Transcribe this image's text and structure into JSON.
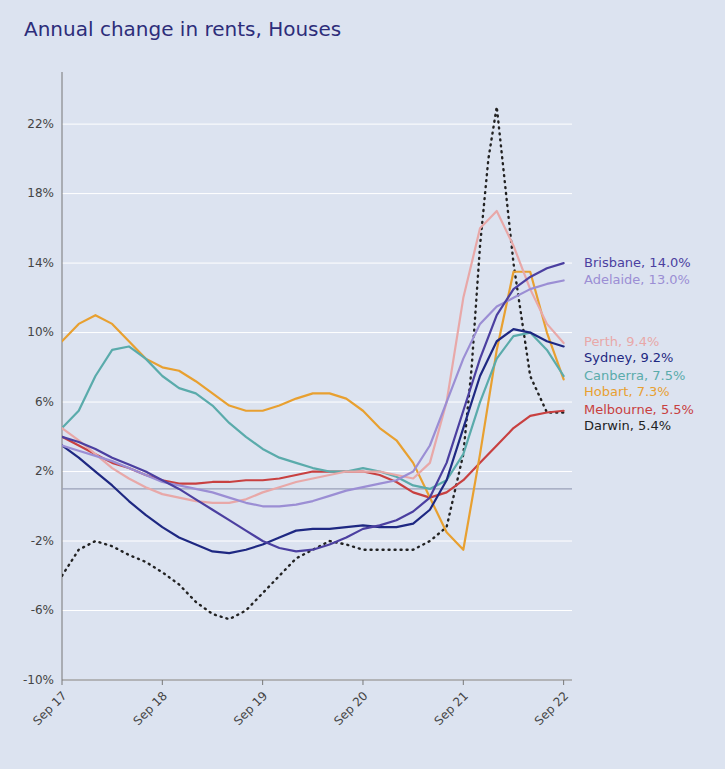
{
  "chart_data": {
    "type": "line",
    "title": "Annual change in rents, Houses",
    "title_color": "#2d2d7a",
    "background_color": "#dce3f0",
    "grid": true,
    "xlim": [
      0,
      61
    ],
    "xticks": [
      {
        "value": 0,
        "label": "Sep 17"
      },
      {
        "value": 12,
        "label": "Sep 18"
      },
      {
        "value": 24,
        "label": "Sep 19"
      },
      {
        "value": 36,
        "label": "Sep 20"
      },
      {
        "value": 48,
        "label": "Sep 21"
      },
      {
        "value": 60,
        "label": "Sep 22"
      }
    ],
    "ylim": [
      -10,
      25
    ],
    "yticks": [
      {
        "value": -10,
        "label": "-10%"
      },
      {
        "value": -6,
        "label": "-6%"
      },
      {
        "value": -2,
        "label": "-2%"
      },
      {
        "value": 2,
        "label": "2%"
      },
      {
        "value": 6,
        "label": "6%"
      },
      {
        "value": 10,
        "label": "10%"
      },
      {
        "value": 14,
        "label": "14%"
      },
      {
        "value": 18,
        "label": "18%"
      },
      {
        "value": 22,
        "label": "22%"
      }
    ],
    "reference_line_y": 1.0,
    "series": [
      {
        "name": "Brisbane, 14.0%",
        "color": "#4b3fa0",
        "line_style": "solid",
        "x": [
          0,
          2,
          4,
          6,
          8,
          10,
          12,
          14,
          16,
          18,
          20,
          22,
          24,
          26,
          28,
          30,
          32,
          34,
          36,
          38,
          40,
          42,
          44,
          46,
          48,
          50,
          52,
          54,
          56,
          58,
          60
        ],
        "values": [
          4.0,
          3.7,
          3.3,
          2.8,
          2.4,
          2.0,
          1.5,
          1.0,
          0.4,
          -0.2,
          -0.8,
          -1.4,
          -2.0,
          -2.4,
          -2.6,
          -2.5,
          -2.2,
          -1.8,
          -1.3,
          -1.1,
          -0.8,
          -0.3,
          0.5,
          2.5,
          5.5,
          8.5,
          11.0,
          12.5,
          13.2,
          13.7,
          14.0
        ]
      },
      {
        "name": "Adelaide, 13.0%",
        "color": "#9b8ed4",
        "line_style": "solid",
        "x": [
          0,
          2,
          4,
          6,
          8,
          10,
          12,
          14,
          16,
          18,
          20,
          22,
          24,
          26,
          28,
          30,
          32,
          34,
          36,
          38,
          40,
          42,
          44,
          46,
          48,
          50,
          52,
          54,
          56,
          58,
          60
        ],
        "values": [
          3.5,
          3.2,
          2.9,
          2.6,
          2.2,
          1.8,
          1.4,
          1.2,
          1.0,
          0.8,
          0.5,
          0.2,
          0.0,
          0.0,
          0.1,
          0.3,
          0.6,
          0.9,
          1.1,
          1.3,
          1.5,
          2.0,
          3.5,
          6.0,
          8.5,
          10.5,
          11.5,
          12.0,
          12.5,
          12.8,
          13.0
        ]
      },
      {
        "name": "Perth, 9.4%",
        "color": "#e8a8a8",
        "line_style": "solid",
        "x": [
          0,
          2,
          4,
          6,
          8,
          10,
          12,
          14,
          16,
          18,
          20,
          22,
          24,
          26,
          28,
          30,
          32,
          34,
          36,
          38,
          40,
          42,
          44,
          46,
          48,
          50,
          52,
          54,
          56,
          58,
          60
        ],
        "values": [
          4.5,
          3.8,
          3.0,
          2.2,
          1.6,
          1.1,
          0.7,
          0.5,
          0.3,
          0.2,
          0.2,
          0.4,
          0.8,
          1.1,
          1.4,
          1.6,
          1.8,
          2.0,
          2.0,
          2.0,
          1.8,
          1.6,
          2.5,
          6.0,
          12.0,
          16.0,
          17.0,
          15.0,
          12.5,
          10.5,
          9.4
        ]
      },
      {
        "name": "Sydney, 9.2%",
        "color": "#1e2882",
        "line_style": "solid",
        "x": [
          0,
          2,
          4,
          6,
          8,
          10,
          12,
          14,
          16,
          18,
          20,
          22,
          24,
          26,
          28,
          30,
          32,
          34,
          36,
          38,
          40,
          42,
          44,
          46,
          48,
          50,
          52,
          54,
          56,
          58,
          60
        ],
        "values": [
          3.5,
          2.8,
          2.0,
          1.2,
          0.3,
          -0.5,
          -1.2,
          -1.8,
          -2.2,
          -2.6,
          -2.7,
          -2.5,
          -2.2,
          -1.8,
          -1.4,
          -1.3,
          -1.3,
          -1.2,
          -1.1,
          -1.2,
          -1.2,
          -1.0,
          -0.2,
          1.5,
          4.5,
          7.5,
          9.5,
          10.2,
          10.0,
          9.5,
          9.2
        ]
      },
      {
        "name": "Canberra, 7.5%",
        "color": "#5aabab",
        "line_style": "solid",
        "x": [
          0,
          2,
          4,
          6,
          8,
          10,
          12,
          14,
          16,
          18,
          20,
          22,
          24,
          26,
          28,
          30,
          32,
          34,
          36,
          38,
          40,
          42,
          44,
          46,
          48,
          50,
          52,
          54,
          56,
          58,
          60
        ],
        "values": [
          4.5,
          5.5,
          7.5,
          9.0,
          9.2,
          8.5,
          7.5,
          6.8,
          6.5,
          5.8,
          4.8,
          4.0,
          3.3,
          2.8,
          2.5,
          2.2,
          2.0,
          2.0,
          2.2,
          2.0,
          1.7,
          1.2,
          1.0,
          1.5,
          3.0,
          6.0,
          8.5,
          9.8,
          10.0,
          9.0,
          7.5
        ]
      },
      {
        "name": "Hobart, 7.3%",
        "color": "#e8a030",
        "line_style": "solid",
        "x": [
          0,
          2,
          4,
          6,
          8,
          10,
          12,
          14,
          16,
          18,
          20,
          22,
          24,
          26,
          28,
          30,
          32,
          34,
          36,
          38,
          40,
          42,
          44,
          46,
          48,
          50,
          52,
          54,
          56,
          58,
          60
        ],
        "values": [
          9.5,
          10.5,
          11.0,
          10.5,
          9.5,
          8.5,
          8.0,
          7.8,
          7.2,
          6.5,
          5.8,
          5.5,
          5.5,
          5.8,
          6.2,
          6.5,
          6.5,
          6.2,
          5.5,
          4.5,
          3.8,
          2.5,
          0.5,
          -1.5,
          -2.5,
          3.0,
          9.0,
          13.5,
          13.5,
          10.0,
          7.3
        ]
      },
      {
        "name": "Melbourne, 5.5%",
        "color": "#c84040",
        "line_style": "solid",
        "x": [
          0,
          2,
          4,
          6,
          8,
          10,
          12,
          14,
          16,
          18,
          20,
          22,
          24,
          26,
          28,
          30,
          32,
          34,
          36,
          38,
          40,
          42,
          44,
          46,
          48,
          50,
          52,
          54,
          56,
          58,
          60
        ],
        "values": [
          4.0,
          3.5,
          3.0,
          2.5,
          2.2,
          1.8,
          1.5,
          1.3,
          1.3,
          1.4,
          1.4,
          1.5,
          1.5,
          1.6,
          1.8,
          2.0,
          2.0,
          2.0,
          2.0,
          1.8,
          1.4,
          0.8,
          0.5,
          0.8,
          1.5,
          2.5,
          3.5,
          4.5,
          5.2,
          5.4,
          5.5
        ]
      },
      {
        "name": "Darwin, 5.4%",
        "color": "#222222",
        "line_style": "dotted",
        "x": [
          0,
          2,
          4,
          6,
          8,
          10,
          12,
          14,
          16,
          18,
          20,
          22,
          24,
          26,
          28,
          30,
          32,
          34,
          36,
          38,
          40,
          42,
          44,
          46,
          48,
          49,
          50,
          51,
          52,
          54,
          56,
          58,
          60
        ],
        "values": [
          -4.0,
          -2.5,
          -2.0,
          -2.3,
          -2.8,
          -3.2,
          -3.8,
          -4.5,
          -5.5,
          -6.2,
          -6.5,
          -6.0,
          -5.0,
          -4.0,
          -3.0,
          -2.5,
          -2.0,
          -2.2,
          -2.5,
          -2.5,
          -2.5,
          -2.5,
          -2.0,
          -1.2,
          3.0,
          8.0,
          15.0,
          20.0,
          23.0,
          14.0,
          7.5,
          5.4,
          5.4
        ]
      }
    ]
  }
}
